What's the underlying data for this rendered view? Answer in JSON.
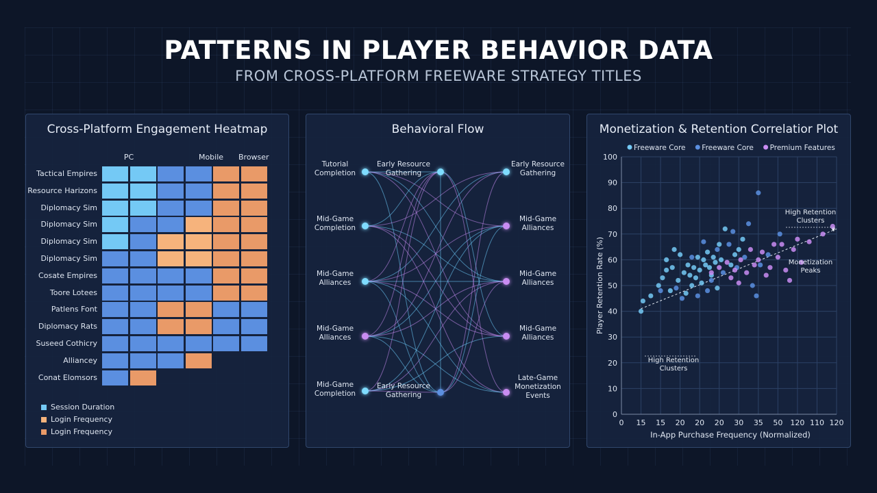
{
  "header": {
    "title": "PATTERNS IN PLAYER BEHAVIOR DATA",
    "subtitle": "FROM CROSS-PLATFORM FREEWARE STRATEGY TITLES"
  },
  "colors": {
    "background": "#0d1628",
    "panel": "#16243e",
    "light_blue": "#74c9f5",
    "mid_blue": "#5b8fe0",
    "dark_blue": "#4f7bd4",
    "peach": "#f6b37c",
    "orange": "#e99a68",
    "cyan_node": "#7fdcff",
    "violet_node": "#c98cf2"
  },
  "heatmap": {
    "title": "Cross-Platform Engagement Heatmap",
    "columns": [
      "PC",
      "Mobile",
      "Browser"
    ],
    "rows": [
      {
        "label": "Tactical Empires",
        "cells": [
          "light_blue",
          "light_blue",
          "mid_blue",
          "mid_blue",
          "orange",
          "orange"
        ]
      },
      {
        "label": "Resource Harizons",
        "cells": [
          "light_blue",
          "light_blue",
          "mid_blue",
          "mid_blue",
          "orange",
          "orange"
        ]
      },
      {
        "label": "Diplomacy Sim",
        "cells": [
          "light_blue",
          "light_blue",
          "mid_blue",
          "mid_blue",
          "orange",
          "orange"
        ]
      },
      {
        "label": "Diplomacy Sim",
        "cells": [
          "light_blue",
          "mid_blue",
          "mid_blue",
          "peach",
          "orange",
          "orange"
        ]
      },
      {
        "label": "Diplomacy Sim",
        "cells": [
          "light_blue",
          "mid_blue",
          "peach",
          "peach",
          "orange",
          "orange"
        ]
      },
      {
        "label": "Diplomacy Sim",
        "cells": [
          "mid_blue",
          "mid_blue",
          "peach",
          "peach",
          "orange",
          "orange"
        ]
      },
      {
        "label": "Cosate Empires",
        "cells": [
          "mid_blue",
          "mid_blue",
          "mid_blue",
          "mid_blue",
          "orange",
          "orange"
        ]
      },
      {
        "label": "Toore Lotees",
        "cells": [
          "mid_blue",
          "mid_blue",
          "mid_blue",
          "mid_blue",
          "orange",
          "orange"
        ]
      },
      {
        "label": "Patlens Font",
        "cells": [
          "mid_blue",
          "mid_blue",
          "orange",
          "orange",
          "mid_blue",
          "mid_blue"
        ]
      },
      {
        "label": "Diplomacy Rats",
        "cells": [
          "mid_blue",
          "mid_blue",
          "orange",
          "orange",
          "mid_blue",
          "mid_blue"
        ]
      },
      {
        "label": "Suseed Cothicry",
        "cells": [
          "mid_blue",
          "mid_blue",
          "mid_blue",
          "mid_blue",
          "mid_blue",
          "mid_blue"
        ]
      },
      {
        "label": "Alliancey",
        "cells": [
          "mid_blue",
          "mid_blue",
          "mid_blue",
          "orange"
        ]
      },
      {
        "label": "Conat Elomsors",
        "cells": [
          "mid_blue",
          "orange"
        ]
      }
    ],
    "legend": [
      {
        "label": "Session Duration",
        "color": "#74c9f5"
      },
      {
        "label": "Login Frequency",
        "color": "#f6b37c"
      },
      {
        "label": "Login Frequency",
        "color": "#e99a68"
      }
    ]
  },
  "flow": {
    "title": "Behavioral Flow",
    "nodes": [
      {
        "id": "a1",
        "lines": [
          "Tutorial",
          "Completion"
        ],
        "color": "cyan_node"
      },
      {
        "id": "b1",
        "lines": [
          "Early Resource",
          "Gathering"
        ],
        "color": "cyan_node"
      },
      {
        "id": "c1",
        "lines": [
          "Early Resource",
          "Gathering"
        ],
        "color": "cyan_node"
      },
      {
        "id": "a2",
        "lines": [
          "Mid-Game",
          "Completion"
        ],
        "color": "cyan_node"
      },
      {
        "id": "c2",
        "lines": [
          "Mid-Game",
          "Alliances"
        ],
        "color": "violet_node"
      },
      {
        "id": "a3",
        "lines": [
          "Mid-Game",
          "Alliances"
        ],
        "color": "cyan_node"
      },
      {
        "id": "c3",
        "lines": [
          "Mid-Game",
          "Alliances"
        ],
        "color": "violet_node"
      },
      {
        "id": "a4",
        "lines": [
          "Mid-Game",
          "Alliances"
        ],
        "color": "violet_node"
      },
      {
        "id": "c4",
        "lines": [
          "Mid-Game",
          "Alliances"
        ],
        "color": "violet_node"
      },
      {
        "id": "a5",
        "lines": [
          "Mid-Game",
          "Completion"
        ],
        "color": "cyan_node"
      },
      {
        "id": "b5",
        "lines": [
          "Early Resource",
          "Gathering"
        ],
        "color": "mid_blue"
      },
      {
        "id": "c5",
        "lines": [
          "Late-Game",
          "Monetization",
          "Events"
        ],
        "color": "violet_node"
      }
    ]
  },
  "chart_data": {
    "type": "scatter",
    "title": "Monetization & Retention Correlatior Plot",
    "xlabel": "In-App Purchase Frequency (Normalized)",
    "ylabel": "Player Retention Rate (%)",
    "x_ticks": [
      "0",
      "15",
      "15",
      "20",
      "20",
      "20",
      "30",
      "35",
      "50",
      "120",
      "110",
      "120"
    ],
    "y_ticks": [
      0,
      10,
      20,
      30,
      40,
      50,
      60,
      70,
      80,
      90,
      100
    ],
    "ylim": [
      0,
      100
    ],
    "grid": true,
    "legend_position": "top",
    "series": [
      {
        "name": "Freeware Core",
        "color": "#74c9f5",
        "points": [
          [
            1,
            40
          ],
          [
            1.1,
            44
          ],
          [
            1.5,
            46
          ],
          [
            1.9,
            50
          ],
          [
            2.1,
            53
          ],
          [
            2.3,
            56
          ],
          [
            2.6,
            57
          ],
          [
            2.3,
            60
          ],
          [
            2.7,
            64
          ],
          [
            2.5,
            48
          ],
          [
            2.9,
            52
          ],
          [
            3.2,
            55
          ],
          [
            3.4,
            58
          ],
          [
            3.0,
            62
          ],
          [
            3.6,
            50
          ],
          [
            3.8,
            53
          ],
          [
            3.3,
            47
          ],
          [
            4.0,
            56
          ],
          [
            4.2,
            60
          ],
          [
            3.9,
            61
          ],
          [
            4.5,
            57
          ],
          [
            4.4,
            63
          ],
          [
            4.8,
            59
          ],
          [
            4.1,
            51
          ],
          [
            4.6,
            54
          ],
          [
            5.0,
            66
          ],
          [
            5.3,
            72
          ],
          [
            5.1,
            60
          ],
          [
            5.6,
            58
          ],
          [
            4.9,
            49
          ],
          [
            5.8,
            62
          ],
          [
            6.2,
            68
          ],
          [
            6.0,
            64
          ],
          [
            3.5,
            54
          ],
          [
            3.7,
            57
          ],
          [
            4.3,
            58
          ],
          [
            4.7,
            61
          ]
        ]
      },
      {
        "name": "Freeware Core",
        "color": "#5b8fe0",
        "points": [
          [
            2.0,
            48
          ],
          [
            2.8,
            49
          ],
          [
            3.1,
            45
          ],
          [
            3.6,
            61
          ],
          [
            3.9,
            46
          ],
          [
            4.2,
            67
          ],
          [
            4.4,
            48
          ],
          [
            4.9,
            64
          ],
          [
            5.2,
            55
          ],
          [
            5.5,
            66
          ],
          [
            5.9,
            57
          ],
          [
            6.3,
            61
          ],
          [
            6.7,
            50
          ],
          [
            7.1,
            58
          ],
          [
            6.5,
            74
          ],
          [
            7.0,
            86
          ],
          [
            7.5,
            62
          ],
          [
            8.1,
            70
          ],
          [
            6.9,
            46
          ],
          [
            5.7,
            71
          ],
          [
            4.6,
            52
          ]
        ]
      },
      {
        "name": "Premium Features",
        "color": "#c98cf2",
        "points": [
          [
            4.6,
            55
          ],
          [
            5.0,
            57
          ],
          [
            5.4,
            59
          ],
          [
            5.8,
            56
          ],
          [
            6.1,
            60
          ],
          [
            6.4,
            55
          ],
          [
            6.8,
            58
          ],
          [
            7.2,
            63
          ],
          [
            7.6,
            57
          ],
          [
            8.0,
            61
          ],
          [
            8.4,
            56
          ],
          [
            8.8,
            64
          ],
          [
            9.2,
            59
          ],
          [
            7.8,
            66
          ],
          [
            6.6,
            64
          ],
          [
            5.6,
            53
          ],
          [
            6.0,
            51
          ],
          [
            7.4,
            54
          ],
          [
            8.6,
            52
          ],
          [
            9.6,
            67
          ],
          [
            10.3,
            70
          ],
          [
            10.8,
            73
          ],
          [
            9.0,
            68
          ],
          [
            8.2,
            66
          ],
          [
            7.0,
            60
          ]
        ]
      }
    ],
    "annotations": [
      {
        "text_lines": [
          "High Retention",
          "Clusters"
        ],
        "anchor": "upper-right"
      },
      {
        "text_lines": [
          "Monetization",
          "Peaks"
        ],
        "anchor": "right"
      },
      {
        "text_lines": [
          "High Retention",
          "Clusters"
        ],
        "anchor": "lower-left"
      }
    ],
    "trendline": {
      "from": [
        1,
        41
      ],
      "to": [
        11,
        72
      ]
    }
  }
}
